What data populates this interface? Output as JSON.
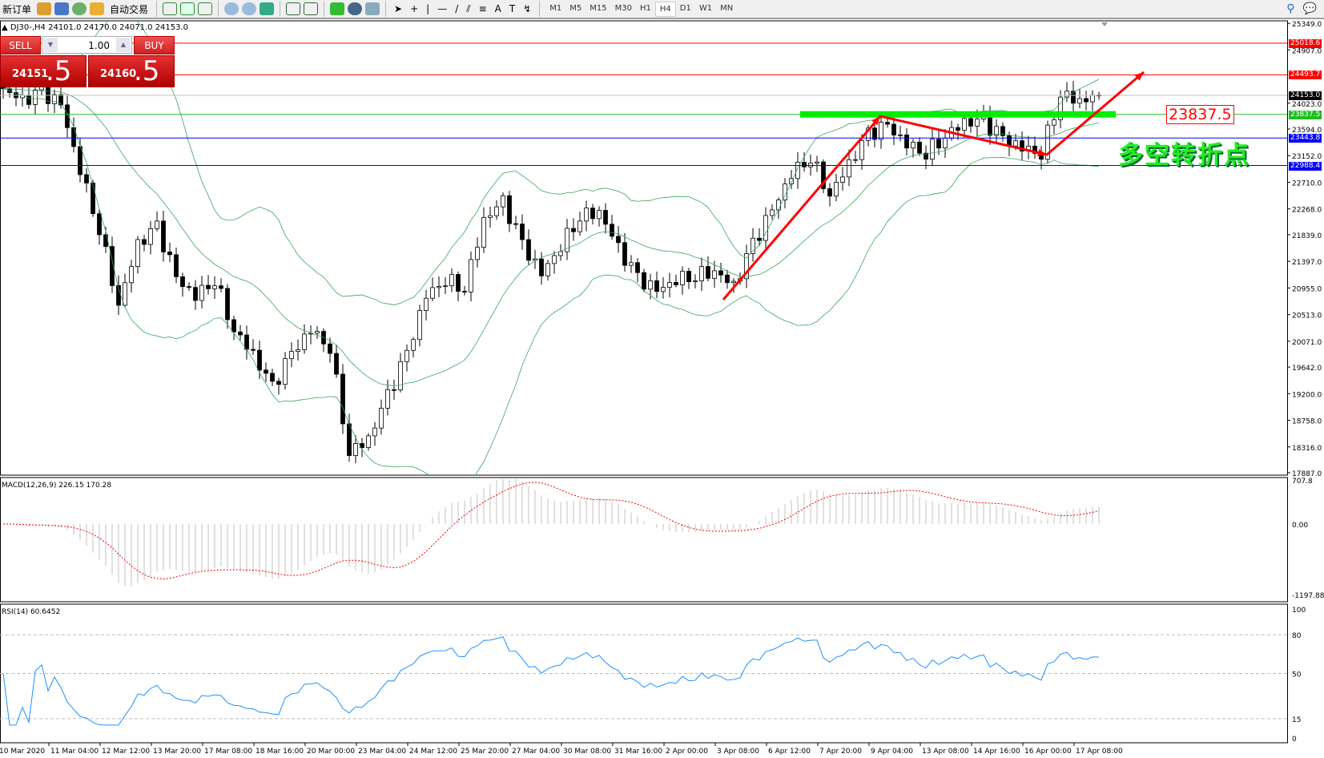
{
  "toolbar": {
    "new_order": "新订单",
    "autotrading": "自动交易",
    "timeframes": [
      "M1",
      "M5",
      "M15",
      "M30",
      "H1",
      "H4",
      "D1",
      "W1",
      "MN"
    ],
    "active_timeframe": "H4"
  },
  "chart": {
    "title": "DJ30-,H4  24101.0 24170.0 24071.0 24153.0",
    "one_click": {
      "sell": "SELL",
      "buy": "BUY",
      "volume": "1.00",
      "sell_small": "24151",
      "sell_big": ".5",
      "buy_small": "24160",
      "buy_big": ".5",
      "sell_color": "#d42020"
    },
    "annotation_level": "23837.5",
    "annotation_text": "多空转折点",
    "price_axis": [
      "25349.0",
      "24907.0",
      "24023.0",
      "23594.0",
      "23152.0",
      "22710.0",
      "22268.0",
      "21839.0",
      "21397.0",
      "20955.0",
      "20513.0",
      "20071.0",
      "19642.0",
      "19200.0",
      "18758.0",
      "18316.0",
      "17887.0"
    ],
    "hlines": [
      {
        "price": "25018.6",
        "color": "#ff0000"
      },
      {
        "price": "24493.7",
        "color": "#ff0000"
      },
      {
        "price": "24153.0",
        "color": "#000000",
        "line": "#c0c0c0"
      },
      {
        "price": "23837.5",
        "color": "#22bb22"
      },
      {
        "price": "23443.8",
        "color": "#0000ff"
      },
      {
        "price": "22988.4",
        "color": "#0000ff"
      }
    ],
    "time_axis": [
      "10 Mar 2020",
      "11 Mar 04:00",
      "12 Mar 12:00",
      "13 Mar 20:00",
      "17 Mar 08:00",
      "18 Mar 16:00",
      "20 Mar 00:00",
      "23 Mar 04:00",
      "24 Mar 12:00",
      "25 Mar 20:00",
      "27 Mar 04:00",
      "30 Mar 08:00",
      "31 Mar 16:00",
      "2 Apr 00:00",
      "3 Apr 08:00",
      "6 Apr 12:00",
      "7 Apr 20:00",
      "9 Apr 04:00",
      "13 Apr 08:00",
      "14 Apr 16:00",
      "16 Apr 00:00",
      "17 Apr 08:00"
    ]
  },
  "macd": {
    "label": "MACD(12,26,9) 226.15 170.28",
    "axis": [
      "707.8",
      "0.00",
      "-1197.88"
    ]
  },
  "rsi": {
    "label": "RSI(14) 60.6452",
    "axis": [
      "100",
      "80",
      "50",
      "15",
      "0"
    ]
  },
  "chart_data": {
    "type": "candlestick",
    "symbol": "DJ30-",
    "timeframe": "H4",
    "close_every_3_bars": [
      24264,
      24054,
      24194,
      23984,
      22932,
      21951,
      20689,
      21670,
      21951,
      21109,
      20829,
      21109,
      20268,
      19848,
      19287,
      19848,
      20268,
      19988,
      18235,
      18446,
      19147,
      19848,
      20829,
      21109,
      20969,
      22091,
      22371,
      21670,
      21179,
      21670,
      22161,
      22231,
      21600,
      21109,
      20899,
      21109,
      21179,
      21250,
      20969,
      21670,
      22231,
      22862,
      23142,
      22511,
      23002,
      23493,
      23633,
      23353,
      23212,
      23493,
      23703,
      23703,
      23423,
      23283,
      23212,
      24194,
      24054,
      24153
    ],
    "last_ohlc": {
      "open": 24101.0,
      "high": 24170.0,
      "low": 24071.0,
      "close": 24153.0
    },
    "ylim": [
      17887.0,
      25349.0
    ],
    "indicators": [
      "Bollinger Bands",
      "MACD(12,26,9)",
      "RSI(14)"
    ],
    "trend_arrows_color": "#ff0000"
  }
}
